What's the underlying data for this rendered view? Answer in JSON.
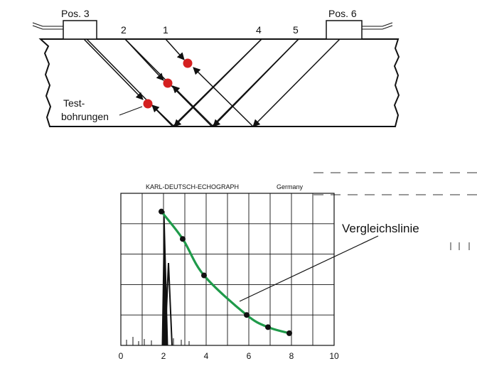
{
  "probes": {
    "left_label": "Pos. 3",
    "right_label": "Pos. 6"
  },
  "beam_labels": [
    "1",
    "2",
    "4",
    "5"
  ],
  "annotation": {
    "line1": "Test-",
    "line2": "bohrungen"
  },
  "screen": {
    "header_brand": "KARL-DEUTSCH-ECHOGRAPH",
    "header_country": "Germany",
    "callout": "Vergleichslinie",
    "x_ticks": [
      "0",
      "2",
      "4",
      "6",
      "8",
      "10"
    ]
  },
  "colors": {
    "hole": "#d42020",
    "curve": "#1f9a4a",
    "outline": "#111111"
  },
  "chart_data": {
    "type": "line",
    "x_ticks": [
      0,
      2,
      4,
      6,
      8,
      10
    ],
    "series": [
      {
        "x": [
          1.9,
          2.9,
          3.9,
          5.9,
          6.9,
          7.9
        ],
        "y": [
          4.4,
          3.5,
          2.3,
          1.0,
          0.6,
          0.4
        ]
      }
    ],
    "grid": true
  }
}
